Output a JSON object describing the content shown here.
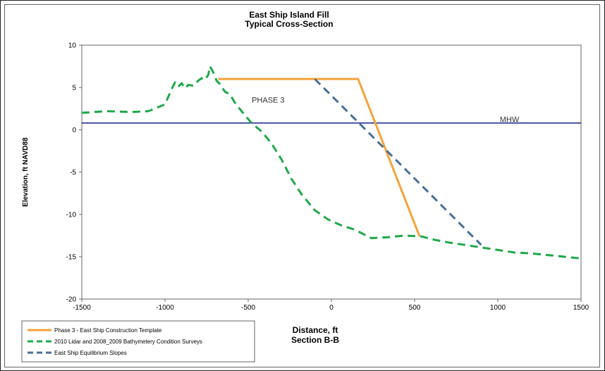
{
  "chart_data": {
    "type": "line",
    "title": "East Ship Island Fill",
    "subtitle": "Typical Cross-Section",
    "xlabel": "Distance, ft",
    "xlabel2": "Section B-B",
    "ylabel": "Elevation, ft NAVD88",
    "xlim": [
      -1500,
      1500
    ],
    "ylim": [
      -20,
      10
    ],
    "x_ticks": [
      "-1500",
      "-1000",
      "-500",
      "0",
      "500",
      "1000",
      "1500"
    ],
    "y_ticks": [
      "10",
      "5",
      "0",
      "-5",
      "-10",
      "-15",
      "-20"
    ],
    "grid": false,
    "legend_position": "bottom-left",
    "annotations": [
      {
        "text": "PHASE 3",
        "x": -380,
        "y": 3.2
      },
      {
        "text": "MHW",
        "x": 1070,
        "y": 0.9
      }
    ],
    "series": [
      {
        "name": "Phase 3 - East Ship Construction Template",
        "color": "#f4a33a",
        "style": "solid",
        "x": [
          -680,
          160,
          530
        ],
        "y": [
          6,
          6,
          -12.6
        ]
      },
      {
        "name": "2010 Lidar and 2008_2009 Bathymetery Condition Surveys",
        "color": "#1fa84a",
        "style": "dashed",
        "x": [
          -1500,
          -1350,
          -1200,
          -1100,
          -1000,
          -960,
          -940,
          -920,
          -900,
          -880,
          -860,
          -830,
          -800,
          -780,
          -760,
          -740,
          -730,
          -710,
          -690,
          -670,
          -640,
          -610,
          -580,
          -540,
          -480,
          -420,
          -360,
          -300,
          -240,
          -180,
          -100,
          -20,
          60,
          140,
          240,
          340,
          440,
          540,
          620,
          700,
          800,
          900,
          1000,
          1100,
          1200,
          1300,
          1400,
          1500
        ],
        "y": [
          2,
          2.2,
          2.1,
          2.2,
          3,
          4.8,
          5.6,
          5.1,
          5.5,
          4.9,
          5.3,
          5.2,
          5.8,
          6.1,
          5.9,
          6.5,
          7.5,
          6.8,
          5.8,
          5.4,
          4.5,
          4.2,
          3.2,
          2.2,
          0.8,
          -0.2,
          -1.6,
          -3.5,
          -5.8,
          -7.6,
          -9.5,
          -10.6,
          -11.3,
          -11.8,
          -12.8,
          -12.7,
          -12.5,
          -12.6,
          -13,
          -13.3,
          -13.6,
          -13.9,
          -14.2,
          -14.5,
          -14.6,
          -14.8,
          -15,
          -15.2
        ]
      },
      {
        "name": "East Ship Equilibrium Slopes",
        "color": "#4a6f9a",
        "style": "dashed",
        "x": [
          -100,
          900
        ],
        "y": [
          6,
          -13.6
        ]
      },
      {
        "name": "MHW",
        "color": "#1c2a8c",
        "style": "solid",
        "x": [
          -1500,
          1500
        ],
        "y": [
          0.8,
          0.8
        ]
      }
    ]
  }
}
